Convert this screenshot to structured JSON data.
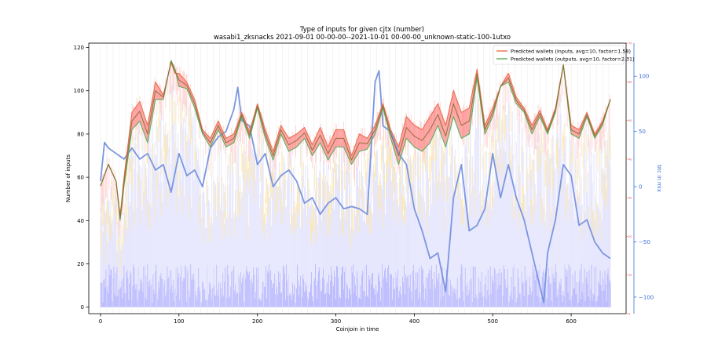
{
  "chart_data": {
    "type": "line",
    "title": "Type of inputs for given cjtx (number)",
    "subtitle": "wasabi1_zksnacks 2021-09-01 00-00-00--2021-10-01 00-00-00_unknown-static-100-1utxo",
    "xlabel": "Coinjoin in time",
    "ylabel": "Number of inputs",
    "ylabel_right": "btc in mix",
    "xlim": [
      -15,
      670
    ],
    "ylim": [
      -3,
      122
    ],
    "ylim_right_btc": [
      -115,
      130
    ],
    "ylim_right_red": [
      0,
      70
    ],
    "x_ticks": [
      0,
      100,
      200,
      300,
      400,
      500,
      600
    ],
    "y_ticks": [
      0,
      20,
      40,
      60,
      80,
      100,
      120
    ],
    "y_ticks_right_btc": [
      -100,
      -50,
      0,
      50,
      100
    ],
    "y_ticks_right_red": [
      0,
      10,
      20,
      30,
      40,
      50,
      60,
      70
    ],
    "grid": "vertical lines only",
    "legend_position": "top-right",
    "colors": {
      "inputs_line": "#e8704f",
      "outputs_line": "#5fae5f",
      "smoothed_line": "#8a6a30",
      "fill_red": "#ff8a8a",
      "fill_green": "#77c777",
      "btc_line": "#7b96e0",
      "bars_blue": "#b8b8ff",
      "bars_light": "#e6e6ff",
      "bars_yellow": "#ffe8a8",
      "bars_pink": "#ffd0d0",
      "right_axis_red": "#e84a4a",
      "right_axis_blue": "#3b6fd6"
    },
    "series": [
      {
        "name": "Predicted wallets (inputs, avg=10, factor=1.58)",
        "x": [
          0,
          10,
          20,
          25,
          30,
          40,
          50,
          60,
          70,
          80,
          90,
          95,
          100,
          110,
          120,
          130,
          140,
          150,
          160,
          170,
          180,
          190,
          200,
          210,
          220,
          230,
          240,
          250,
          260,
          270,
          280,
          290,
          300,
          310,
          320,
          330,
          340,
          350,
          360,
          370,
          380,
          390,
          400,
          410,
          420,
          430,
          440,
          450,
          460,
          470,
          480,
          490,
          500,
          510,
          520,
          530,
          540,
          550,
          560,
          570,
          580,
          590,
          600,
          610,
          620,
          630,
          640,
          650
        ],
        "values": [
          56,
          66,
          58,
          42,
          60,
          90,
          95,
          84,
          104,
          98,
          113,
          108,
          108,
          104,
          96,
          82,
          78,
          86,
          78,
          80,
          90,
          81,
          94,
          82,
          72,
          84,
          78,
          80,
          83,
          75,
          83,
          74,
          82,
          82,
          70,
          80,
          78,
          84,
          94,
          82,
          74,
          88,
          84,
          82,
          88,
          94,
          84,
          100,
          90,
          92,
          110,
          84,
          92,
          102,
          108,
          97,
          92,
          84,
          91,
          82,
          92,
          112,
          84,
          82,
          90,
          80,
          86,
          96
        ]
      },
      {
        "name": "Predicted wallets (outputs, avg=10, factor=2.31)",
        "x": [
          0,
          10,
          20,
          25,
          30,
          40,
          50,
          60,
          70,
          80,
          90,
          95,
          100,
          110,
          120,
          130,
          140,
          150,
          160,
          170,
          180,
          190,
          200,
          210,
          220,
          230,
          240,
          250,
          260,
          270,
          280,
          290,
          300,
          310,
          320,
          330,
          340,
          350,
          360,
          370,
          380,
          390,
          400,
          410,
          420,
          430,
          440,
          450,
          460,
          470,
          480,
          490,
          500,
          510,
          520,
          530,
          540,
          550,
          560,
          570,
          580,
          590,
          600,
          610,
          620,
          630,
          640,
          650
        ],
        "values": [
          56,
          66,
          58,
          40,
          56,
          82,
          86,
          76,
          96,
          96,
          114,
          110,
          102,
          101,
          92,
          80,
          74,
          82,
          74,
          76,
          88,
          78,
          92,
          78,
          68,
          80,
          72,
          74,
          78,
          70,
          76,
          68,
          74,
          74,
          66,
          72,
          73,
          80,
          92,
          78,
          66,
          78,
          74,
          72,
          76,
          84,
          74,
          88,
          78,
          80,
          106,
          80,
          88,
          102,
          104,
          94,
          90,
          80,
          88,
          80,
          90,
          112,
          80,
          78,
          88,
          78,
          84,
          96
        ]
      },
      {
        "name": "btc in mix",
        "x": [
          0,
          5,
          10,
          20,
          30,
          40,
          50,
          60,
          70,
          80,
          90,
          100,
          110,
          120,
          130,
          140,
          150,
          160,
          170,
          175,
          180,
          190,
          200,
          210,
          220,
          230,
          240,
          250,
          260,
          270,
          280,
          290,
          300,
          310,
          320,
          330,
          340,
          350,
          355,
          360,
          370,
          380,
          390,
          400,
          410,
          420,
          430,
          440,
          450,
          460,
          470,
          480,
          490,
          500,
          510,
          520,
          530,
          540,
          550,
          560,
          565,
          570,
          580,
          590,
          600,
          610,
          620,
          630,
          640,
          650
        ],
        "values": [
          5,
          40,
          35,
          30,
          25,
          35,
          25,
          30,
          15,
          20,
          -5,
          30,
          10,
          15,
          0,
          35,
          45,
          50,
          70,
          90,
          60,
          55,
          20,
          30,
          0,
          10,
          15,
          5,
          -15,
          -10,
          -25,
          -15,
          -10,
          -20,
          -18,
          -20,
          -25,
          95,
          105,
          55,
          50,
          30,
          20,
          -20,
          -40,
          -65,
          -60,
          -95,
          -10,
          20,
          -40,
          -35,
          -20,
          30,
          -10,
          20,
          -10,
          -30,
          -60,
          -90,
          -105,
          -60,
          -30,
          20,
          10,
          -35,
          -30,
          -50,
          -60,
          -65
        ]
      }
    ]
  }
}
